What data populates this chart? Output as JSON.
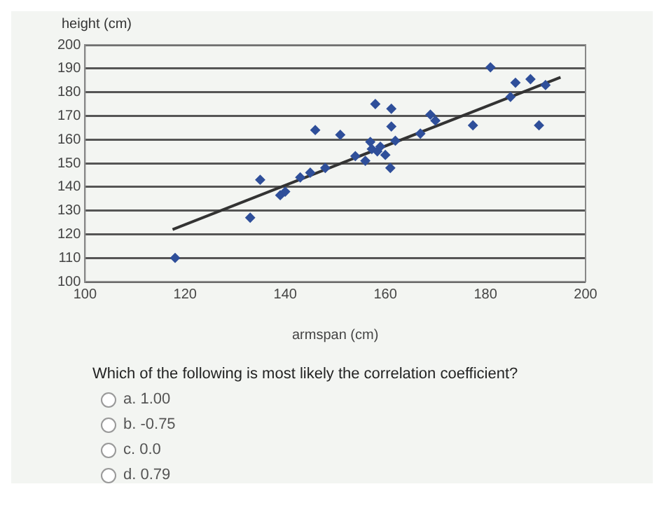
{
  "chart_data": {
    "type": "scatter",
    "ylabel": "height (cm)",
    "xlabel": "armspan (cm)",
    "xlim": [
      100,
      200
    ],
    "xticks": [
      100,
      120,
      140,
      160,
      180,
      200
    ],
    "ylim": [
      100,
      200
    ],
    "yticks": [
      100,
      110,
      120,
      130,
      140,
      150,
      160,
      170,
      180,
      190,
      200
    ],
    "grid": "y",
    "marker": "diamond",
    "legend": false,
    "series": [
      {
        "type": "scatter",
        "color": "#2f4f9a",
        "x": [
          118,
          133,
          135,
          139,
          140,
          143,
          145,
          146,
          148,
          151,
          154,
          156,
          157,
          157.3,
          158,
          158.4,
          159,
          160,
          161,
          161.2,
          161.2,
          162,
          167,
          169,
          170,
          177.5,
          181,
          185,
          186,
          189,
          190.7,
          192
        ],
        "values": [
          110,
          127,
          143,
          136.5,
          138,
          144,
          146,
          164,
          148,
          162,
          153,
          151,
          159,
          156,
          175,
          155,
          157,
          153.5,
          148,
          173,
          165.5,
          159.5,
          162.5,
          170.5,
          168,
          166,
          190.5,
          178,
          184,
          185.5,
          166,
          183
        ]
      },
      {
        "type": "line",
        "color": "#333333",
        "marker": "none",
        "line_style": "solid",
        "x": [
          117.5,
          195
        ],
        "values": [
          122,
          186.3
        ]
      }
    ],
    "annotations": [
      "Which of the following is most likely the correlation coefficient?",
      "a. 1.00",
      "b. -0.75",
      "c. 0.0",
      "d. 0.79"
    ]
  }
}
